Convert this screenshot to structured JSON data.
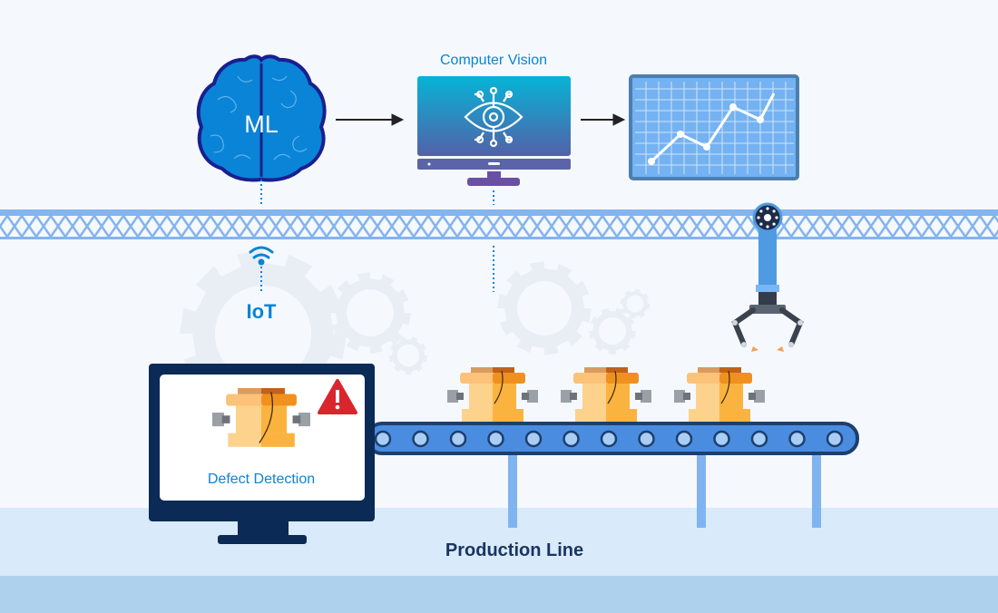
{
  "labels": {
    "ml": "ML",
    "computer_vision": "Computer Vision",
    "iot": "IoT",
    "defect_detection": "Defect Detection",
    "production_line": "Production Line"
  },
  "icons": [
    "brain-icon",
    "arrow-right-icon",
    "eye-circuit-icon",
    "line-chart-icon",
    "wifi-icon",
    "gear-icon",
    "warning-icon",
    "robotic-arm-icon",
    "product-icon",
    "conveyor-belt-icon"
  ],
  "colors": {
    "accent": "#0a84d6",
    "navy": "#0b2a55",
    "truss": "#84b4ee",
    "warning": "#d9262c",
    "product": "#fbb340"
  }
}
